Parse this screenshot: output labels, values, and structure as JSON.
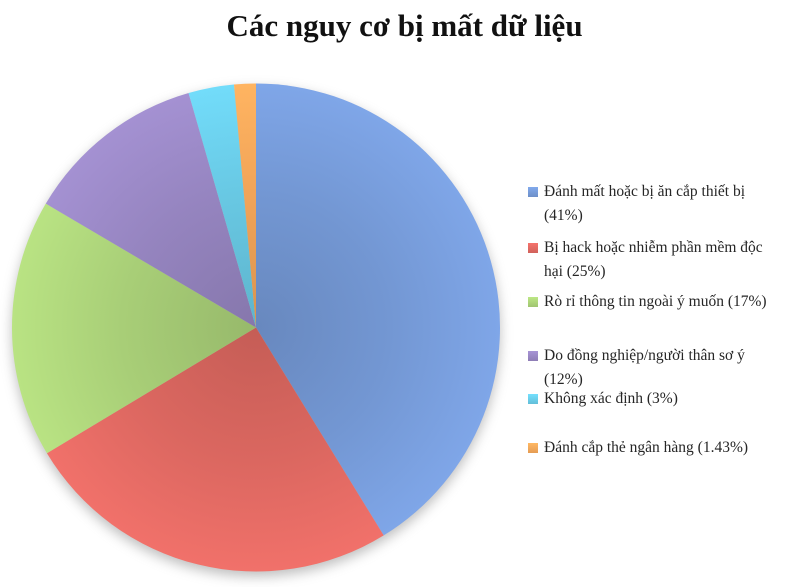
{
  "title": "Các nguy cơ bị mất dữ liệu",
  "chart_data": {
    "type": "pie",
    "title": "Các nguy cơ bị mất dữ liệu",
    "legend_position": "right",
    "start_angle_deg": 0,
    "direction": "clockwise",
    "background_color": "#ffffff",
    "slices": [
      {
        "label": "Đánh mất hoặc bị ăn cắp thiết bị (41%)",
        "value": 41,
        "color": "#7397D3",
        "legend_lines": [
          "Đánh mất hoặc bị ăn cắp thiết bị",
          "(41%)"
        ]
      },
      {
        "label": "Bị hack hoặc nhiễm phần mềm độc hại (25%)",
        "value": 25,
        "color": "#DB6760",
        "legend_lines": [
          "Bị hack hoặc nhiễm phần mềm độc",
          "hại (25%)"
        ]
      },
      {
        "label": "Rò rỉ thông tin ngoài ý muốn (17%)",
        "value": 17,
        "color": "#A8CE77",
        "legend_lines": [
          "Rò rỉ thông tin ngoài ý muốn (17%)"
        ]
      },
      {
        "label": "Do đồng nghiệp/người thân sơ ý (12%)",
        "value": 12,
        "color": "#9584BF",
        "legend_lines": [
          "Do đồng nghiệp/người thân sơ ý",
          "(12%)"
        ]
      },
      {
        "label": "Không xác định (3%)",
        "value": 3,
        "color": "#68C8E3",
        "legend_lines": [
          "Không xác định (3%)"
        ]
      },
      {
        "label": "Đánh cắp thẻ ngân hàng (1.43%)",
        "value": 1.43,
        "color": "#F1A458",
        "legend_lines": [
          "Đánh cắp thẻ ngân hàng (1.43%)"
        ]
      }
    ]
  }
}
